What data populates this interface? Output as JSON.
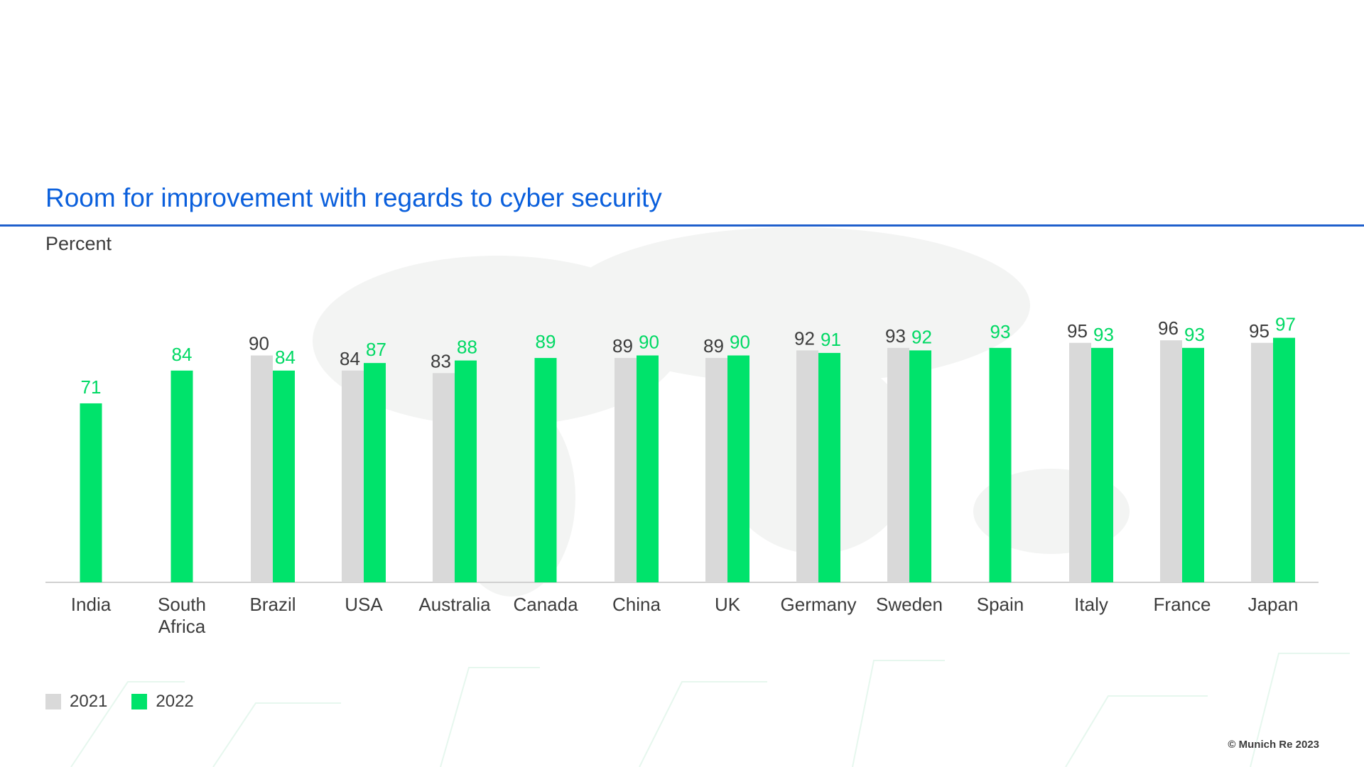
{
  "title": "Room for improvement with regards to cyber security",
  "unit_label": "Percent",
  "copyright": "© Munich Re 2023",
  "colors": {
    "series_2021": "#d9d9d9",
    "series_2022": "#00e36b",
    "title": "#0a5fdc",
    "label_2021": "#3c3c3c",
    "label_2022": "#00d964"
  },
  "chart_data": {
    "type": "bar",
    "title": "Room for improvement with regards to cyber security",
    "ylabel": "Percent",
    "xlabel": "",
    "ylim": [
      0,
      100
    ],
    "grid": false,
    "legend_position": "bottom-left",
    "categories": [
      [
        "India"
      ],
      [
        "South",
        "Africa"
      ],
      [
        "Brazil"
      ],
      [
        "USA"
      ],
      [
        "Australia"
      ],
      [
        "Canada"
      ],
      [
        "China"
      ],
      [
        "UK"
      ],
      [
        "Germany"
      ],
      [
        "Sweden"
      ],
      [
        "Spain"
      ],
      [
        "Italy"
      ],
      [
        "France"
      ],
      [
        "Japan"
      ]
    ],
    "series": [
      {
        "name": "2021",
        "values": [
          null,
          null,
          90,
          84,
          83,
          null,
          89,
          89,
          92,
          93,
          null,
          95,
          96,
          95
        ]
      },
      {
        "name": "2022",
        "values": [
          71,
          84,
          84,
          87,
          88,
          89,
          90,
          90,
          91,
          92,
          93,
          93,
          93,
          97
        ]
      }
    ]
  }
}
